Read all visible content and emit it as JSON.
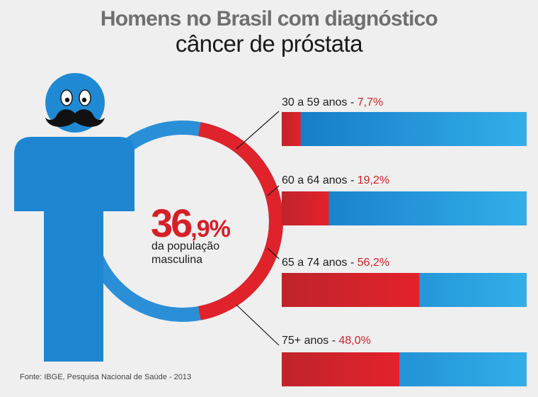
{
  "title": "Homens no Brasil com diagnóstico",
  "subtitle": "câncer de próstata",
  "center": {
    "value_int": "36",
    "value_dec": ",9%",
    "caption": "da população masculina"
  },
  "source": "Fonte: IBGE, Pesquisa Nacional de Saúde - 2013",
  "colors": {
    "accent_red": "#d42027",
    "blue": "#1f8fd6",
    "blue_light": "#31a9e8",
    "figure_blue": "#1e88d2",
    "background": "#efefef"
  },
  "chart_data": {
    "type": "bar",
    "orientation": "horizontal",
    "categories": [
      "30 a 59 anos",
      "60 a 64 anos",
      "65 a 74 anos",
      "75+ anos"
    ],
    "values": [
      7.7,
      19.2,
      56.2,
      48.0
    ],
    "value_labels": [
      "7,7%",
      "19,2%",
      "56,2%",
      "48,0%"
    ],
    "xlim": [
      0,
      100
    ],
    "total_ring_value": 36.9
  }
}
